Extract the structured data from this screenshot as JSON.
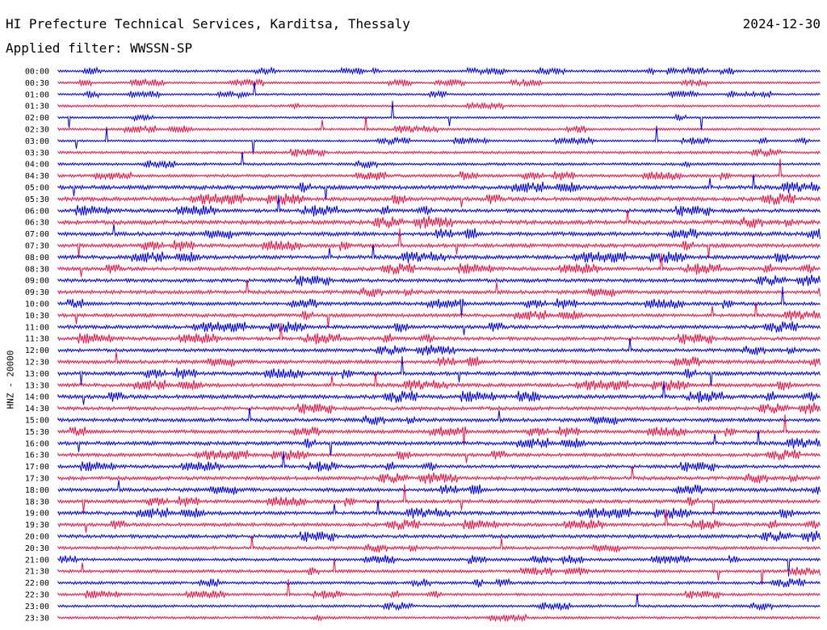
{
  "header": {
    "title": "HI Prefecture Technical Services, Karditsa, Thessaly",
    "date": "2024-12-30",
    "filter": "Applied filter: WWSSN-SP"
  },
  "chart_data": {
    "type": "line",
    "title": "HI Prefecture Technical Services, Karditsa, Thessaly",
    "ylabel": "HNZ - 20000",
    "rows": [
      "00:00",
      "00:30",
      "01:00",
      "01:30",
      "02:00",
      "02:30",
      "03:00",
      "03:30",
      "04:00",
      "04:30",
      "05:00",
      "05:30",
      "06:00",
      "06:30",
      "07:00",
      "07:30",
      "08:00",
      "08:30",
      "09:00",
      "09:30",
      "10:00",
      "10:30",
      "11:00",
      "11:30",
      "12:00",
      "12:30",
      "13:00",
      "13:30",
      "14:00",
      "14:30",
      "15:00",
      "15:30",
      "16:00",
      "16:30",
      "17:00",
      "17:30",
      "18:00",
      "18:30",
      "19:00",
      "19:30",
      "20:00",
      "20:30",
      "21:00",
      "21:30",
      "22:00",
      "22:30",
      "23:00",
      "23:30"
    ],
    "row_colors": [
      "#0000ee",
      "#ee1144"
    ],
    "row_activity": [
      0.25,
      0.2,
      0.2,
      0.25,
      0.2,
      0.25,
      0.2,
      0.3,
      0.3,
      0.35,
      0.55,
      0.55,
      0.5,
      0.6,
      0.55,
      0.5,
      0.55,
      0.5,
      0.5,
      0.5,
      0.45,
      0.45,
      0.5,
      0.5,
      0.45,
      0.5,
      0.5,
      0.5,
      0.55,
      0.5,
      0.5,
      0.45,
      0.5,
      0.45,
      0.45,
      0.5,
      0.5,
      0.45,
      0.5,
      0.45,
      0.5,
      0.4,
      0.35,
      0.35,
      0.35,
      0.3,
      0.3,
      0.3
    ]
  }
}
